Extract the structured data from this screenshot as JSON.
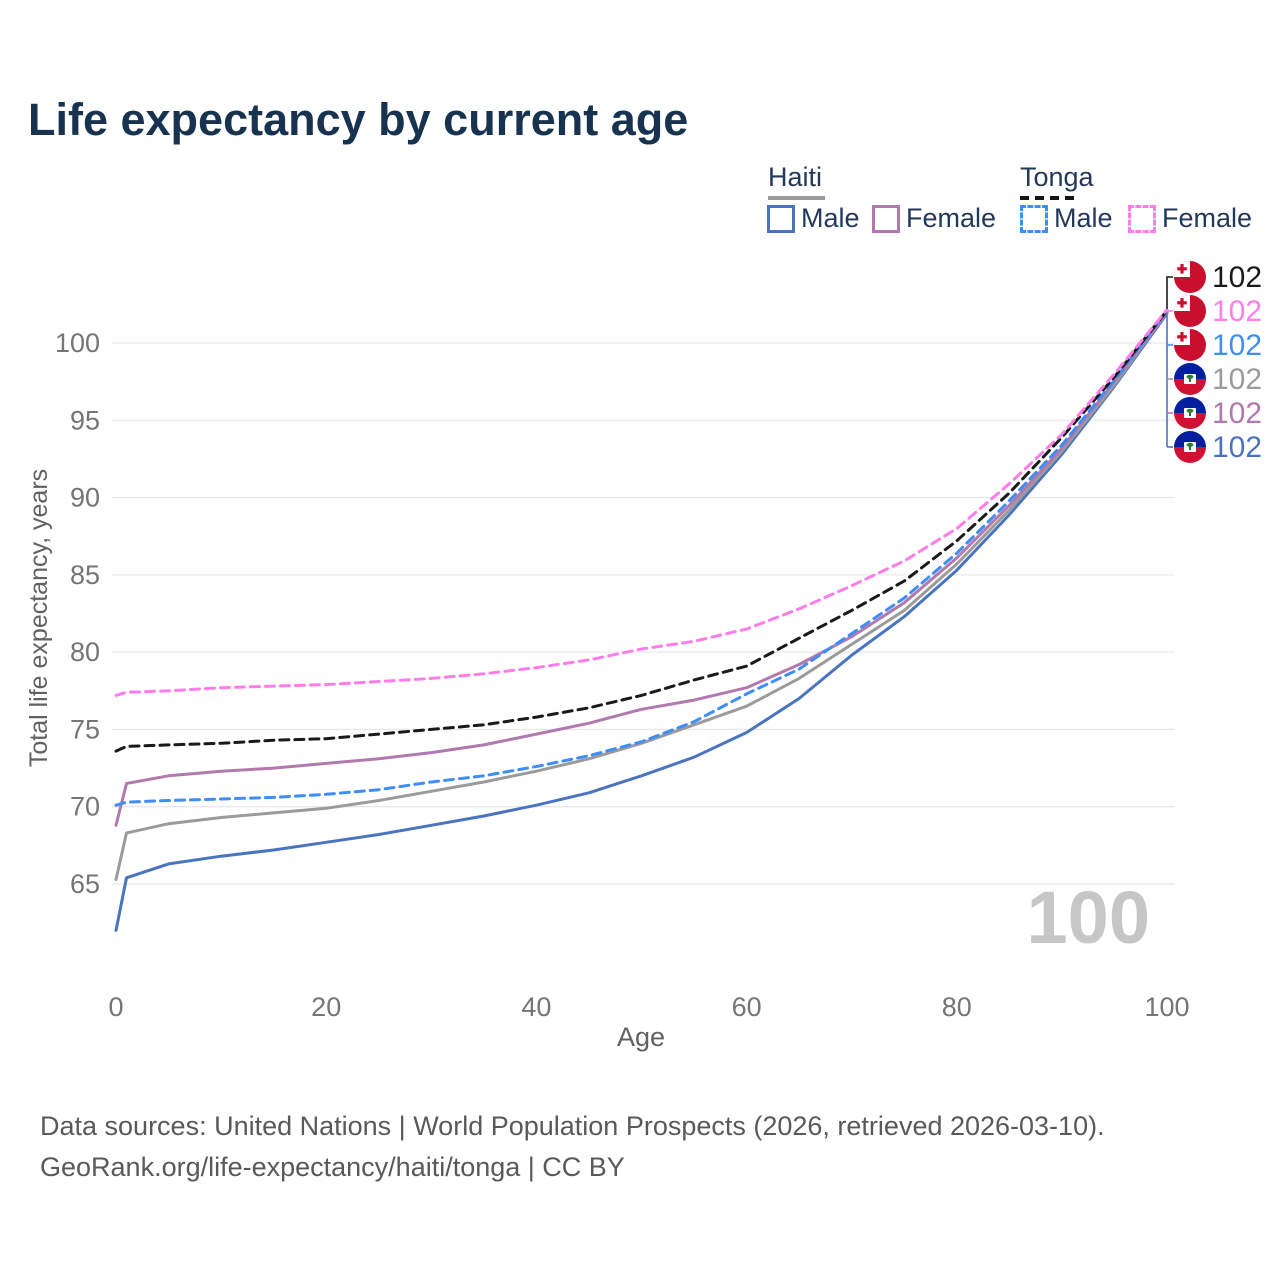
{
  "title": "Life expectancy by current age",
  "legend": {
    "groups": [
      {
        "label": "Haiti",
        "line_style": "solid",
        "swatch_color": "#999999",
        "items": [
          {
            "label": "Male",
            "color": "#4a74c0"
          },
          {
            "label": "Female",
            "color": "#b279ae"
          }
        ]
      },
      {
        "label": "Tonga",
        "line_style": "dashed",
        "swatch_color": "#151515",
        "items": [
          {
            "label": "Male",
            "color": "#3f8df5"
          },
          {
            "label": "Female",
            "color": "#ff7de9"
          }
        ]
      }
    ]
  },
  "chart_data": {
    "type": "line",
    "title": "Life expectancy by current age",
    "xlabel": "Age",
    "ylabel": "Total life expectancy, years",
    "xlim": [
      0,
      100
    ],
    "ylim": [
      61,
      103.5
    ],
    "xticks": [
      0,
      20,
      40,
      60,
      80,
      100
    ],
    "yticks": [
      65,
      70,
      75,
      80,
      85,
      90,
      95,
      100
    ],
    "grid": true,
    "legend_position": "top-right",
    "x": [
      0,
      1,
      5,
      10,
      15,
      20,
      25,
      30,
      35,
      40,
      45,
      50,
      55,
      60,
      65,
      70,
      75,
      80,
      85,
      90,
      95,
      100
    ],
    "series": [
      {
        "name": "Haiti Male",
        "country": "haiti",
        "sex": "male",
        "color": "#4a74c0",
        "dash": false,
        "values": [
          62.0,
          65.4,
          66.3,
          66.8,
          67.2,
          67.7,
          68.2,
          68.8,
          69.4,
          70.1,
          70.9,
          72.0,
          73.2,
          74.8,
          77.0,
          79.8,
          82.3,
          85.3,
          88.9,
          92.8,
          97.2,
          101.9
        ]
      },
      {
        "name": "Haiti Both",
        "country": "haiti",
        "sex": "both",
        "color": "#9b9b9b",
        "dash": false,
        "values": [
          65.3,
          68.3,
          68.9,
          69.3,
          69.6,
          69.9,
          70.4,
          71.0,
          71.6,
          72.3,
          73.1,
          74.1,
          75.3,
          76.5,
          78.3,
          80.5,
          82.7,
          85.7,
          89.2,
          93.0,
          97.3,
          102.0
        ]
      },
      {
        "name": "Haiti Female",
        "country": "haiti",
        "sex": "female",
        "color": "#b279ae",
        "dash": false,
        "values": [
          68.8,
          71.5,
          72.0,
          72.3,
          72.5,
          72.8,
          73.1,
          73.5,
          74.0,
          74.7,
          75.4,
          76.3,
          76.9,
          77.7,
          79.2,
          81.0,
          83.2,
          86.1,
          89.5,
          93.2,
          97.5,
          101.95
        ]
      },
      {
        "name": "Tonga Male",
        "country": "tonga",
        "sex": "male",
        "color": "#3f8df5",
        "dash": true,
        "values": [
          70.1,
          70.3,
          70.4,
          70.5,
          70.6,
          70.8,
          71.1,
          71.6,
          72.0,
          72.6,
          73.3,
          74.2,
          75.5,
          77.3,
          78.9,
          81.2,
          83.5,
          86.4,
          89.8,
          93.4,
          97.6,
          102.05
        ]
      },
      {
        "name": "Tonga Both",
        "country": "tonga",
        "sex": "both",
        "color": "#1a1a1a",
        "dash": true,
        "values": [
          73.6,
          73.9,
          74.0,
          74.1,
          74.3,
          74.4,
          74.7,
          75.0,
          75.3,
          75.8,
          76.4,
          77.2,
          78.2,
          79.1,
          80.9,
          82.7,
          84.6,
          87.2,
          90.3,
          93.9,
          97.8,
          102.1
        ]
      },
      {
        "name": "Tonga Female",
        "country": "tonga",
        "sex": "female",
        "color": "#ff7de9",
        "dash": true,
        "values": [
          77.2,
          77.4,
          77.5,
          77.7,
          77.8,
          77.9,
          78.1,
          78.3,
          78.6,
          79.0,
          79.5,
          80.2,
          80.7,
          81.5,
          82.8,
          84.3,
          85.9,
          88.0,
          90.9,
          94.1,
          98.0,
          102.15
        ]
      }
    ],
    "end_labels": [
      {
        "text": "102",
        "color": "#1a1a1a",
        "flag": "tonga"
      },
      {
        "text": "102",
        "color": "#ff7de9",
        "flag": "tonga"
      },
      {
        "text": "102",
        "color": "#3f8df5",
        "flag": "tonga"
      },
      {
        "text": "102",
        "color": "#9b9b9b",
        "flag": "haiti"
      },
      {
        "text": "102",
        "color": "#b279ae",
        "flag": "haiti"
      },
      {
        "text": "102",
        "color": "#4a74c0",
        "flag": "haiti"
      }
    ]
  },
  "watermark": "100",
  "footer": {
    "line1": "Data sources: United Nations | World Population Prospects (2026, retrieved 2026-03-10).",
    "line2": "GeoRank.org/life-expectancy/haiti/tonga | CC BY"
  }
}
